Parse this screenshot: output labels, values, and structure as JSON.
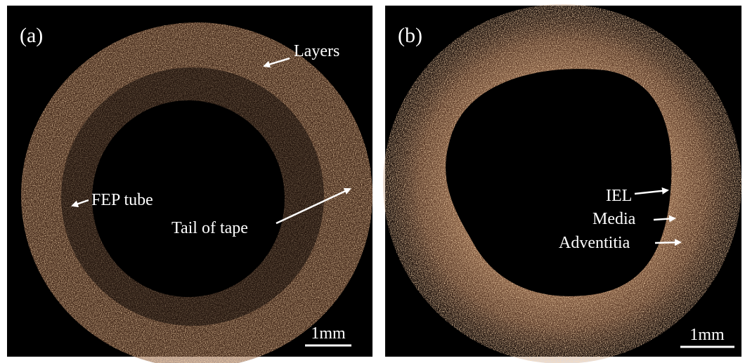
{
  "panels": [
    {
      "label": "(a)",
      "annotations": [
        "Layers",
        "FEP tube",
        "Tail of tape"
      ],
      "scale_bar": "1mm"
    },
    {
      "label": "(b)",
      "annotations": [
        "IEL",
        "Media",
        "Adventitia"
      ],
      "scale_bar": "1mm"
    }
  ]
}
